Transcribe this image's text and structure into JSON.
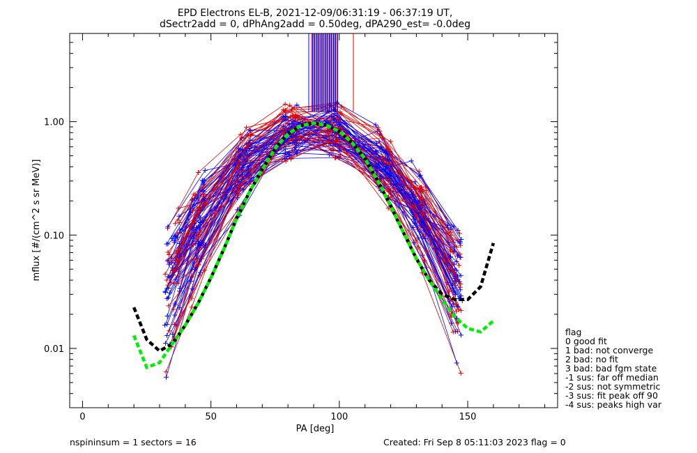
{
  "chart_data": {
    "type": "line",
    "title": "EPD Electrons EL-B, 2021-12-09/06:31:19 - 06:37:19 UT,",
    "subtitle": "dSectr2add = 0, dPhAng2add = 0.50deg, dPA290_est=  -0.0deg",
    "xlabel": "PA [deg]",
    "ylabel": "mflux [#/(cm^2 s sr MeV)]",
    "xlim": [
      -5,
      185
    ],
    "ylim": [
      0.003,
      6.0
    ],
    "yscale": "log",
    "xticks": [
      0,
      50,
      100,
      150
    ],
    "xticklabels": [
      "0",
      "50",
      "100",
      "150"
    ],
    "yticks": [
      0.01,
      0.1,
      1.0
    ],
    "yticklabels": [
      "0.01",
      "0.10",
      "1.00"
    ],
    "grid": false,
    "legend_position": "right",
    "legend": {
      "title": "flag",
      "entries": [
        "0 good fit",
        "1 bad: not converge",
        "2 bad: no fit",
        "3 bad: bad fgm state",
        "-1 sus: far off median",
        "-2 sus: not symmetric",
        "-3 sus: fit peak off 90",
        "-4 sus: peaks high var"
      ]
    },
    "series": [
      {
        "color": "#000000",
        "style": "dashed",
        "x": [
          20,
          25,
          30,
          35,
          40,
          45,
          50,
          55,
          60,
          65,
          70,
          75,
          80,
          85,
          90,
          95,
          100,
          105,
          110,
          115,
          120,
          125,
          130,
          135,
          140,
          145,
          150,
          155,
          160
        ],
        "y": [
          0.023,
          0.012,
          0.0095,
          0.011,
          0.016,
          0.025,
          0.042,
          0.075,
          0.14,
          0.24,
          0.38,
          0.58,
          0.78,
          0.92,
          0.97,
          0.93,
          0.82,
          0.65,
          0.47,
          0.3,
          0.18,
          0.105,
          0.062,
          0.04,
          0.03,
          0.027,
          0.027,
          0.035,
          0.085
        ]
      },
      {
        "color": "#00ee00",
        "style": "dashed",
        "x": [
          20,
          25,
          30,
          35,
          40,
          45,
          50,
          55,
          60,
          65,
          70,
          75,
          80,
          85,
          90,
          95,
          100,
          105,
          110,
          115,
          120,
          125,
          130,
          135,
          140,
          145,
          150,
          155,
          160
        ],
        "y": [
          0.013,
          0.0068,
          0.0075,
          0.011,
          0.016,
          0.025,
          0.042,
          0.075,
          0.14,
          0.24,
          0.38,
          0.58,
          0.78,
          0.92,
          0.97,
          0.93,
          0.82,
          0.65,
          0.47,
          0.3,
          0.18,
          0.105,
          0.062,
          0.04,
          0.027,
          0.019,
          0.015,
          0.014,
          0.0175
        ]
      }
    ]
  },
  "footer": {
    "left": "nspininsum =  1  sectors = 16",
    "right": "Created: Fri Sep  8 05:11:03 2023   flag = 0"
  }
}
